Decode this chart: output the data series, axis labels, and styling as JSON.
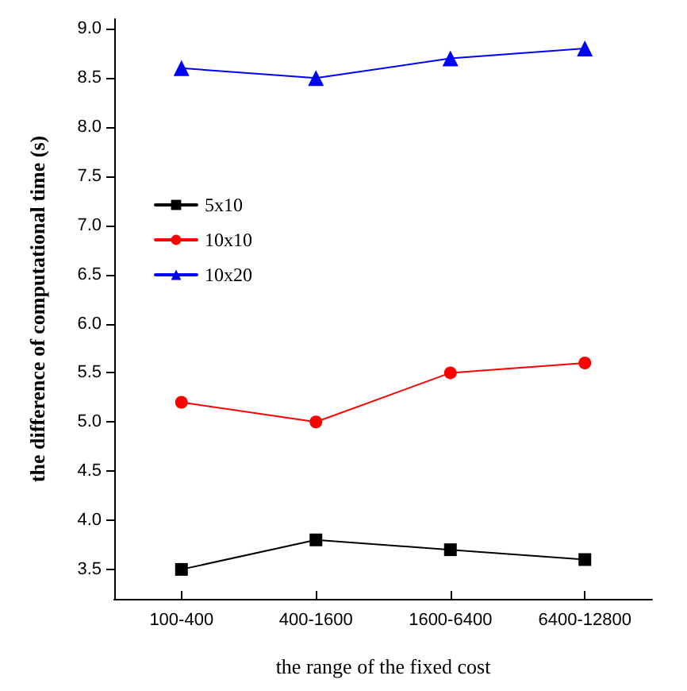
{
  "chart_data": {
    "type": "line",
    "xlabel": "the range of the fixed cost",
    "ylabel": "the difference of computational time (s)",
    "categories": [
      "100-400",
      "400-1600",
      "1600-6400",
      "6400-12800"
    ],
    "series": [
      {
        "name": "5x10",
        "color": "#000000",
        "marker": "square",
        "values": [
          3.5,
          3.8,
          3.7,
          3.6
        ]
      },
      {
        "name": "10x10",
        "color": "#ff0000",
        "marker": "circle",
        "values": [
          5.2,
          5.0,
          5.5,
          5.6
        ]
      },
      {
        "name": "10x20",
        "color": "#0000ff",
        "marker": "triangle",
        "values": [
          8.6,
          8.5,
          8.7,
          8.8
        ]
      }
    ],
    "ylim": [
      3.2,
      9.1
    ],
    "yticks": [
      3.5,
      {
        "value": 4,
        "label": "4.0"
      },
      4.5,
      {
        "value": 5,
        "label": "5.0"
      },
      5.5,
      {
        "value": 6,
        "label": "6.0"
      },
      6.5,
      {
        "value": 7,
        "label": "7.0"
      },
      7.5,
      {
        "value": 8,
        "label": "8.0"
      },
      8.5,
      {
        "value": 9,
        "label": "9.0"
      }
    ],
    "grid": false,
    "legend": "top left",
    "line_style": "solid"
  }
}
